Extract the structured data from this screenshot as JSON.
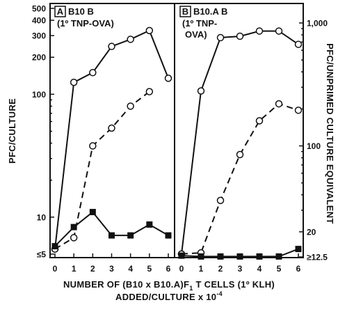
{
  "chart_data": [
    {
      "type": "line",
      "panel_letter": "A",
      "panel_title": "B10 B",
      "panel_subtitle": [
        "(1º TNP-OVA)"
      ],
      "ylabel": "PFC/CULTURE",
      "y_scale": "log",
      "ylim": [
        5,
        500
      ],
      "y_ticks": [
        5,
        10,
        100,
        200,
        300,
        400,
        500
      ],
      "y_tick_labels": [
        "≤5",
        "10",
        "100",
        "200",
        "300",
        "400",
        "500"
      ],
      "xlim": [
        0,
        6
      ],
      "x_ticks": [
        0,
        1,
        2,
        3,
        4,
        5,
        6
      ],
      "x_tick_labels": [
        "0",
        "1",
        "2",
        "3",
        "4",
        "5",
        "6"
      ],
      "series": [
        {
          "marker": "open-circle",
          "line": "solid",
          "x": [
            0,
            1,
            2,
            3,
            4,
            5,
            6
          ],
          "y": [
            5.5,
            125,
            150,
            245,
            280,
            330,
            135
          ]
        },
        {
          "marker": "open-circle",
          "line": "dashed",
          "x": [
            0,
            1,
            2,
            3,
            4,
            5
          ],
          "y": [
            5.5,
            6.8,
            38,
            53,
            80,
            105
          ]
        },
        {
          "marker": "filled-square",
          "line": "solid",
          "x": [
            0,
            1,
            2,
            3,
            4,
            5,
            6
          ],
          "y": [
            5.8,
            8.3,
            11,
            7.1,
            7.1,
            8.7,
            7.1
          ]
        }
      ]
    },
    {
      "type": "line",
      "panel_letter": "B",
      "panel_title": "B10.A B",
      "panel_subtitle": [
        "(1º TNP-",
        "OVA)"
      ],
      "ylabel": "PFC/UNPRIMED CULTURE EQUIVALENT",
      "y_scale": "log",
      "ylim": [
        12.5,
        1000
      ],
      "y_ticks": [
        12.5,
        20,
        100,
        1000
      ],
      "y_tick_labels": [
        "≥12.5",
        "20",
        "100",
        "1,000"
      ],
      "xlim": [
        0,
        6
      ],
      "x_ticks": [
        0,
        1,
        2,
        3,
        4,
        5,
        6
      ],
      "x_tick_labels": [
        "0",
        "1",
        "2",
        "3",
        "4",
        "5",
        "6"
      ],
      "series": [
        {
          "marker": "open-circle",
          "line": "solid",
          "x": [
            0,
            1,
            2,
            3,
            4,
            5,
            6
          ],
          "y": [
            13.2,
            280,
            760,
            780,
            860,
            860,
            670
          ]
        },
        {
          "marker": "open-circle",
          "line": "dashed",
          "x": [
            0,
            1,
            2,
            3,
            4,
            5,
            6
          ],
          "y": [
            13.2,
            13.5,
            36,
            85,
            160,
            220,
            195
          ]
        },
        {
          "marker": "filled-square",
          "line": "solid",
          "x": [
            0,
            1,
            2,
            3,
            4,
            5,
            6
          ],
          "y": [
            12.8,
            12.6,
            12.6,
            12.6,
            12.6,
            12.6,
            14.5
          ]
        }
      ]
    }
  ],
  "x_axis_title": {
    "line1": "NUMBER OF (B10 x B10.A)F",
    "line1_subscript": "1",
    "line1_tail": " T CELLS (1º KLH)",
    "line2": "ADDED/CULTURE x 10",
    "line2_superscript": "-4"
  }
}
